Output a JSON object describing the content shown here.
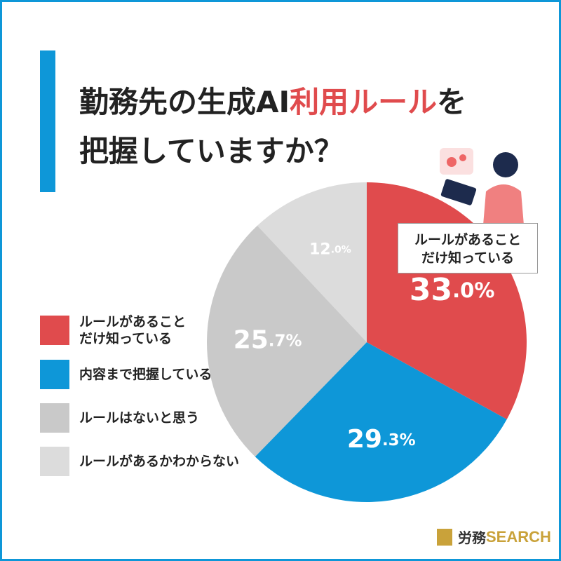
{
  "chart_data": {
    "type": "pie",
    "title": [
      "勤務先の生成AI",
      "利用ルール",
      "を",
      "把握していますか？"
    ],
    "categories": [
      "ルールがあること\nだけ知っている",
      "内容まで把握している",
      "ルールはないと思う",
      "ルールがあるかわからない"
    ],
    "values": [
      33.0,
      29.3,
      25.7,
      12.0
    ],
    "value_labels": [
      "33.0%",
      "29.3%",
      "25.7%",
      "12.0%"
    ],
    "colors": [
      "#e04b4d",
      "#0e97d8",
      "#c9c9c9",
      "#dcdcdc"
    ],
    "annotation": [
      "ルールがあること",
      "だけ知っている"
    ],
    "logo": [
      "労務",
      "SEARCH"
    ]
  }
}
